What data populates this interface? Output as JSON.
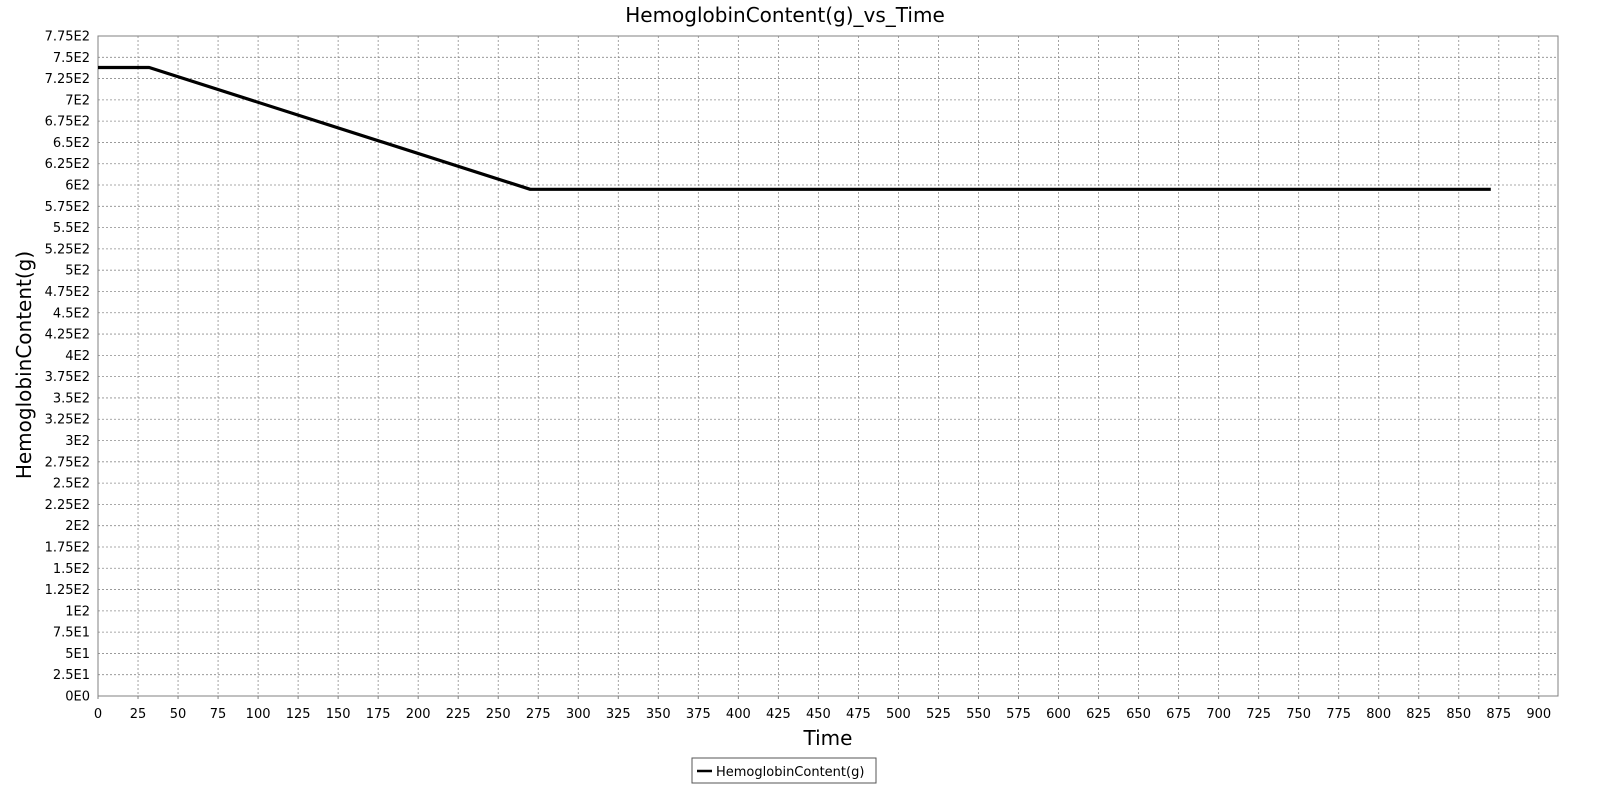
{
  "chart_data": {
    "type": "line",
    "title": "HemoglobinContent(g)_vs_Time",
    "xlabel": "Time",
    "ylabel": "HemoglobinContent(g)",
    "xlim": [
      0,
      912
    ],
    "ylim": [
      0,
      775
    ],
    "grid": true,
    "legend_position": "bottom-center",
    "x_ticks": [
      0,
      25,
      50,
      75,
      100,
      125,
      150,
      175,
      200,
      225,
      250,
      275,
      300,
      325,
      350,
      375,
      400,
      425,
      450,
      475,
      500,
      525,
      550,
      575,
      600,
      625,
      650,
      675,
      700,
      725,
      750,
      775,
      800,
      825,
      850,
      875,
      900
    ],
    "y_ticks": [
      {
        "value": 0,
        "label": "0E0"
      },
      {
        "value": 25,
        "label": "2.5E1"
      },
      {
        "value": 50,
        "label": "5E1"
      },
      {
        "value": 75,
        "label": "7.5E1"
      },
      {
        "value": 100,
        "label": "1E2"
      },
      {
        "value": 125,
        "label": "1.25E2"
      },
      {
        "value": 150,
        "label": "1.5E2"
      },
      {
        "value": 175,
        "label": "1.75E2"
      },
      {
        "value": 200,
        "label": "2E2"
      },
      {
        "value": 225,
        "label": "2.25E2"
      },
      {
        "value": 250,
        "label": "2.5E2"
      },
      {
        "value": 275,
        "label": "2.75E2"
      },
      {
        "value": 300,
        "label": "3E2"
      },
      {
        "value": 325,
        "label": "3.25E2"
      },
      {
        "value": 350,
        "label": "3.5E2"
      },
      {
        "value": 375,
        "label": "3.75E2"
      },
      {
        "value": 400,
        "label": "4E2"
      },
      {
        "value": 425,
        "label": "4.25E2"
      },
      {
        "value": 450,
        "label": "4.5E2"
      },
      {
        "value": 475,
        "label": "4.75E2"
      },
      {
        "value": 500,
        "label": "5E2"
      },
      {
        "value": 525,
        "label": "5.25E2"
      },
      {
        "value": 550,
        "label": "5.5E2"
      },
      {
        "value": 575,
        "label": "5.75E2"
      },
      {
        "value": 600,
        "label": "6E2"
      },
      {
        "value": 625,
        "label": "6.25E2"
      },
      {
        "value": 650,
        "label": "6.5E2"
      },
      {
        "value": 675,
        "label": "6.75E2"
      },
      {
        "value": 700,
        "label": "7E2"
      },
      {
        "value": 725,
        "label": "7.25E2"
      },
      {
        "value": 750,
        "label": "7.5E2"
      },
      {
        "value": 775,
        "label": "7.75E2"
      }
    ],
    "series": [
      {
        "name": "HemoglobinContent(g)",
        "color": "#000000",
        "x": [
          0,
          32,
          270,
          870
        ],
        "y": [
          738,
          738,
          595,
          595
        ]
      }
    ]
  }
}
